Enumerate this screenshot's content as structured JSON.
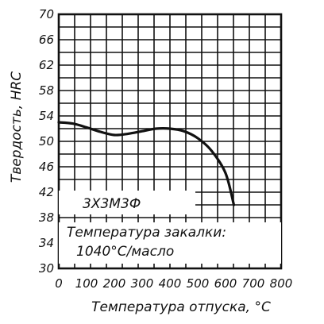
{
  "chart_data": {
    "type": "line",
    "title": "",
    "xlabel": "Температура отпуска, °С",
    "ylabel": "Твердость, HRC",
    "xlim": [
      0,
      800
    ],
    "ylim": [
      30,
      70
    ],
    "grid": true,
    "x_ticks": [
      "0",
      "100",
      "200",
      "300",
      "400",
      "500",
      "600",
      "700",
      "800"
    ],
    "y_ticks": [
      "30",
      "34",
      "38",
      "42",
      "46",
      "50",
      "54",
      "58",
      "62",
      "66",
      "70"
    ],
    "series": [
      {
        "name": "3Х3М3Ф",
        "x": [
          0,
          50,
          100,
          150,
          200,
          250,
          300,
          350,
          400,
          450,
          500,
          550,
          600,
          630
        ],
        "values": [
          53,
          52.8,
          52.2,
          51.5,
          51.0,
          51.2,
          51.6,
          52.0,
          52.0,
          51.6,
          50.5,
          48.5,
          45.0,
          40.0
        ]
      }
    ],
    "annotations": {
      "steel_grade": "3Х3М3Ф",
      "quench_line1": "Температура закалки:",
      "quench_line2": "1040°С/масло"
    }
  }
}
